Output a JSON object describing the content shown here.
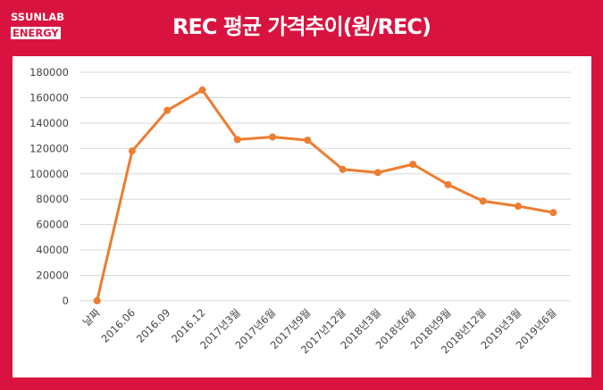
{
  "brand": {
    "logo_line1": "SSUNLAB",
    "logo_line2": "ENERGY"
  },
  "colors": {
    "background": "#d9133f",
    "panel": "#ffffff",
    "line": "#ed7d31",
    "grid": "#d9d9d9"
  },
  "chart_data": {
    "type": "line",
    "title": "REC 평균 가격추이(원/REC)",
    "xlabel": "",
    "ylabel": "",
    "ylim": [
      0,
      180000
    ],
    "yticks": [
      0,
      20000,
      40000,
      60000,
      80000,
      100000,
      120000,
      140000,
      160000,
      180000
    ],
    "grid": true,
    "legend": "none",
    "categories": [
      "날짜",
      "2016.06",
      "2016.09",
      "2016.12",
      "2017년3월",
      "2017년6월",
      "2017년9월",
      "2017년12월",
      "2018년3월",
      "2018년6월",
      "2018년9월",
      "2018년12월",
      "2019년3월",
      "2019년6월"
    ],
    "series": [
      {
        "values": [
          0,
          118000,
          150000,
          166000,
          127000,
          129000,
          126500,
          103500,
          101000,
          107500,
          91500,
          78500,
          74500,
          69500
        ]
      }
    ]
  }
}
